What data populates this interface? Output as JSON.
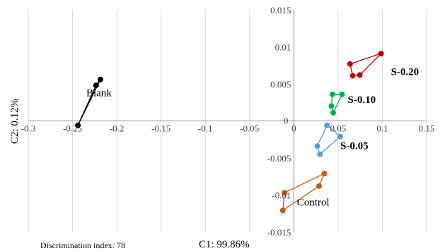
{
  "chart_data": {
    "type": "scatter",
    "title": "",
    "xlabel": "C1: 99.86%",
    "ylabel": "C2: 0.12%",
    "xlim": [
      -0.3,
      0.15
    ],
    "ylim": [
      -0.015,
      0.015
    ],
    "x_ticks": [
      "-0.3",
      "-0.25",
      "-0.2",
      "-0.15",
      "-0.1",
      "-0.05",
      "0",
      "0.05",
      "0.1",
      "0.15"
    ],
    "y_ticks": [
      "0.015",
      "0.01",
      "0.005",
      "0",
      "-0.005",
      "-0.01",
      "-0.015"
    ],
    "grid": "vertical",
    "footnote": "Discrimination index: 78",
    "series": [
      {
        "name": "Blank",
        "color": "#000000",
        "label_bold": false,
        "points": [
          [
            -0.244,
            -0.0006
          ],
          [
            -0.2185,
            0.0056
          ],
          [
            -0.2235,
            0.0048
          ]
        ]
      },
      {
        "name": "S-0.20",
        "color": "#c00000",
        "label_bold": true,
        "points": [
          [
            0.0985,
            0.0091
          ],
          [
            0.0635,
            0.0077
          ],
          [
            0.0665,
            0.0061
          ],
          [
            0.0745,
            0.0062
          ]
        ]
      },
      {
        "name": "S-0.10",
        "color": "#00b050",
        "label_bold": true,
        "points": [
          [
            0.0435,
            0.0036
          ],
          [
            0.0545,
            0.0036
          ],
          [
            0.0445,
            0.0011
          ],
          [
            0.0425,
            0.002
          ]
        ]
      },
      {
        "name": "S-0.05",
        "color": "#5b9bd5",
        "label_bold": true,
        "points": [
          [
            0.0375,
            -0.0006
          ],
          [
            0.0525,
            -0.0021
          ],
          [
            0.0295,
            -0.0045
          ],
          [
            0.0265,
            -0.0034
          ]
        ]
      },
      {
        "name": "Control",
        "color": "#c55a11",
        "label_bold": false,
        "points": [
          [
            -0.0125,
            -0.0121
          ],
          [
            -0.0105,
            -0.0097
          ],
          [
            0.0345,
            -0.0071
          ],
          [
            0.0285,
            -0.0088
          ]
        ]
      }
    ]
  }
}
